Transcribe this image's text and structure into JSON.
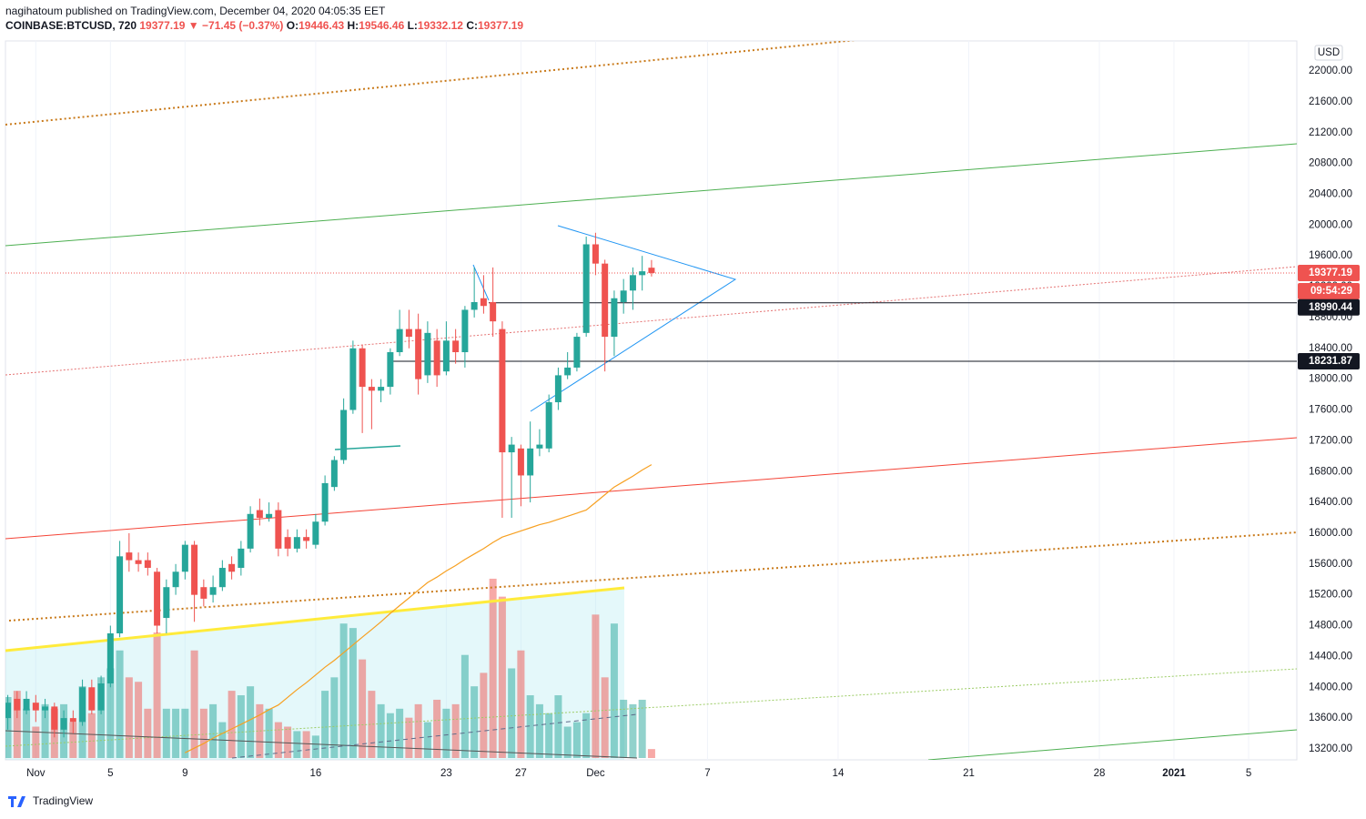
{
  "header": {
    "published": "nagihatoum published on TradingView.com, December 04, 2020 04:05:35 EET",
    "symbol": "COINBASE:BTCUSD, 720",
    "arrow": "▼",
    "change": "−71.45 (−0.37%)",
    "o": "O:",
    "h": "H:",
    "l": "L:",
    "c": "C:"
  },
  "footer": {
    "brand": "TradingView"
  },
  "chart_data": {
    "type": "candlestick",
    "currency": "USD",
    "countdown": "09:54:29",
    "x": [
      "2020-10-30T12:00",
      "2020-10-31T00:00",
      "2020-10-31T12:00",
      "2020-11-01T00:00",
      "2020-11-01T12:00",
      "2020-11-02T00:00",
      "2020-11-02T12:00",
      "2020-11-03T00:00",
      "2020-11-03T12:00",
      "2020-11-04T00:00",
      "2020-11-04T12:00",
      "2020-11-05T00:00",
      "2020-11-05T12:00",
      "2020-11-06T00:00",
      "2020-11-06T12:00",
      "2020-11-07T00:00",
      "2020-11-07T12:00",
      "2020-11-08T00:00",
      "2020-11-08T12:00",
      "2020-11-09T00:00",
      "2020-11-09T12:00",
      "2020-11-10T00:00",
      "2020-11-10T12:00",
      "2020-11-11T00:00",
      "2020-11-11T12:00",
      "2020-11-12T00:00",
      "2020-11-12T12:00",
      "2020-11-13T00:00",
      "2020-11-13T12:00",
      "2020-11-14T00:00",
      "2020-11-14T12:00",
      "2020-11-15T00:00",
      "2020-11-15T12:00",
      "2020-11-16T00:00",
      "2020-11-16T12:00",
      "2020-11-17T00:00",
      "2020-11-17T12:00",
      "2020-11-18T00:00",
      "2020-11-18T12:00",
      "2020-11-19T00:00",
      "2020-11-19T12:00",
      "2020-11-20T00:00",
      "2020-11-20T12:00",
      "2020-11-21T00:00",
      "2020-11-21T12:00",
      "2020-11-22T00:00",
      "2020-11-22T12:00",
      "2020-11-23T00:00",
      "2020-11-23T12:00",
      "2020-11-24T00:00",
      "2020-11-24T12:00",
      "2020-11-25T00:00",
      "2020-11-25T12:00",
      "2020-11-26T00:00",
      "2020-11-26T12:00",
      "2020-11-27T00:00",
      "2020-11-27T12:00",
      "2020-11-28T00:00",
      "2020-11-28T12:00",
      "2020-11-29T00:00",
      "2020-11-29T12:00",
      "2020-11-30T00:00",
      "2020-11-30T12:00",
      "2020-12-01T00:00",
      "2020-12-01T12:00",
      "2020-12-02T00:00",
      "2020-12-02T12:00",
      "2020-12-03T00:00",
      "2020-12-03T12:00",
      "2020-12-04T00:00"
    ],
    "open": [
      13600,
      13850,
      13700,
      13800,
      13700,
      13750,
      13450,
      13600,
      13550,
      14000,
      13700,
      14050,
      14700,
      15750,
      15650,
      15650,
      15500,
      14900,
      15300,
      15500,
      15850,
      15300,
      15200,
      15300,
      15600,
      15550,
      15800,
      16300,
      16200,
      16300,
      15950,
      15800,
      15950,
      15850,
      16150,
      16600,
      16950,
      17600,
      18400,
      17900,
      17850,
      17900,
      18350,
      18650,
      18650,
      18050,
      18500,
      18100,
      18500,
      18350,
      18900,
      19050,
      19000,
      18650,
      17050,
      17100,
      16750,
      17100,
      17100,
      17700,
      18050,
      18150,
      18600,
      19750,
      19500,
      18550,
      19000,
      19150,
      19350,
      19446.43
    ],
    "high": [
      13900,
      13950,
      13950,
      13900,
      13850,
      13800,
      13700,
      13700,
      14100,
      14100,
      14150,
      14800,
      15900,
      16000,
      15750,
      15750,
      15550,
      15400,
      15600,
      15900,
      15900,
      15400,
      15450,
      15650,
      15700,
      15900,
      16350,
      16450,
      16400,
      16400,
      16050,
      16050,
      16050,
      16250,
      16750,
      17000,
      17750,
      18500,
      18450,
      18000,
      18000,
      18400,
      18900,
      18900,
      18850,
      18750,
      18650,
      18750,
      18650,
      18950,
      19450,
      19350,
      19450,
      18750,
      17250,
      17150,
      17450,
      17350,
      17800,
      18150,
      18350,
      18600,
      19850,
      19900,
      19550,
      19150,
      19300,
      19450,
      19600,
      19546.46
    ],
    "low": [
      13450,
      13600,
      13650,
      13550,
      13600,
      13350,
      13350,
      13400,
      13500,
      13650,
      13650,
      14000,
      14650,
      15500,
      15500,
      15450,
      14700,
      14700,
      15200,
      15400,
      14850,
      15050,
      15100,
      15250,
      15400,
      15450,
      15750,
      16100,
      16150,
      15700,
      15700,
      15750,
      15800,
      15800,
      16100,
      16550,
      16900,
      17550,
      17300,
      17350,
      17700,
      17800,
      18300,
      18400,
      17800,
      17950,
      17900,
      18050,
      18200,
      18150,
      18800,
      18850,
      18550,
      16200,
      16200,
      16350,
      16400,
      17000,
      17050,
      17600,
      18000,
      18100,
      18550,
      19350,
      18100,
      18300,
      18850,
      18900,
      19150,
      19332.12
    ],
    "close": [
      13800,
      13700,
      13850,
      13700,
      13750,
      13450,
      13600,
      13550,
      14000,
      13700,
      14050,
      14700,
      15700,
      15650,
      15600,
      15550,
      14800,
      15300,
      15500,
      15850,
      15200,
      15150,
      15300,
      15550,
      15500,
      15800,
      16250,
      16200,
      16250,
      15800,
      15800,
      15950,
      15900,
      16150,
      16650,
      16950,
      17600,
      18400,
      17900,
      17850,
      17900,
      18350,
      18650,
      18550,
      18000,
      18600,
      18050,
      18500,
      18350,
      18900,
      19000,
      18950,
      18750,
      17050,
      17150,
      16750,
      17100,
      17150,
      17700,
      18050,
      18150,
      18550,
      19750,
      19500,
      18550,
      19050,
      19150,
      19350,
      19400,
      19377.19
    ],
    "up_color": "#26a69a",
    "down_color": "#ef5350",
    "volume": {
      "values": [
        68,
        75,
        55,
        35,
        60,
        55,
        60,
        40,
        80,
        50,
        90,
        100,
        120,
        90,
        85,
        55,
        140,
        55,
        55,
        55,
        120,
        55,
        60,
        40,
        75,
        70,
        80,
        60,
        55,
        40,
        35,
        30,
        30,
        25,
        75,
        90,
        150,
        145,
        110,
        75,
        60,
        50,
        55,
        45,
        60,
        40,
        65,
        55,
        60,
        115,
        80,
        95,
        200,
        180,
        100,
        120,
        70,
        60,
        50,
        70,
        35,
        40,
        50,
        160,
        90,
        150,
        65,
        60,
        65,
        10
      ],
      "lim": [
        0,
        203
      ]
    },
    "ma": {
      "color": "#f7a021",
      "values": [
        null,
        null,
        null,
        null,
        null,
        null,
        null,
        null,
        null,
        null,
        null,
        null,
        null,
        null,
        null,
        null,
        null,
        null,
        null,
        13150,
        13210,
        13270,
        13340,
        13400,
        13460,
        13520,
        13580,
        13640,
        13710,
        13770,
        13870,
        13970,
        14060,
        14160,
        14260,
        14350,
        14450,
        14550,
        14650,
        14750,
        14850,
        14960,
        15060,
        15160,
        15260,
        15360,
        15430,
        15510,
        15580,
        15660,
        15730,
        15800,
        15880,
        15950,
        15990,
        16030,
        16070,
        16110,
        16140,
        16180,
        16220,
        16260,
        16300,
        16400,
        16500,
        16600,
        16670,
        16740,
        16820,
        16890
      ]
    },
    "hlines": [
      18990.44,
      18231.87
    ],
    "xlim": [
      "2020-10-30T09:00",
      "2021-01-07T14:00"
    ],
    "xticks": [
      {
        "value": "2020-11-01T00:00",
        "label": "Nov"
      },
      {
        "value": "2020-11-05T00:00",
        "label": "5"
      },
      {
        "value": "2020-11-09T00:00",
        "label": "9"
      },
      {
        "value": "2020-11-16T00:00",
        "label": "16"
      },
      {
        "value": "2020-11-23T00:00",
        "label": "23"
      },
      {
        "value": "2020-11-27T00:00",
        "label": "27"
      },
      {
        "value": "2020-12-01T00:00",
        "label": "Dec"
      },
      {
        "value": "2020-12-07T00:00",
        "label": "7"
      },
      {
        "value": "2020-12-14T00:00",
        "label": "14"
      },
      {
        "value": "2020-12-21T00:00",
        "label": "21"
      },
      {
        "value": "2020-12-28T00:00",
        "label": "28"
      },
      {
        "value": "2021-01-01T00:00",
        "label": "2021"
      },
      {
        "value": "2021-01-05T00:00",
        "label": "5"
      }
    ],
    "ylim": [
      13058,
      22390
    ],
    "yticks": [
      {
        "value": 13200,
        "label": "13200.00"
      },
      {
        "value": 13600,
        "label": "13600.00"
      },
      {
        "value": 14000,
        "label": "14000.00"
      },
      {
        "value": 14400,
        "label": "14400.00"
      },
      {
        "value": 14800,
        "label": "14800.00"
      },
      {
        "value": 15200,
        "label": "15200.00"
      },
      {
        "value": 15600,
        "label": "15600.00"
      },
      {
        "value": 16000,
        "label": "16000.00"
      },
      {
        "value": 16400,
        "label": "16400.00"
      },
      {
        "value": 16800,
        "label": "16800.00"
      },
      {
        "value": 17200,
        "label": "17200.00"
      },
      {
        "value": 17600,
        "label": "17600.00"
      },
      {
        "value": 18000,
        "label": "18000.00"
      },
      {
        "value": 18400,
        "label": "18400.00"
      },
      {
        "value": 18800,
        "label": "18800.00"
      },
      {
        "value": 19200,
        "label": "19200.00"
      },
      {
        "value": 19600,
        "label": "19600.00"
      },
      {
        "value": 20000,
        "label": "20000.00"
      },
      {
        "value": 20400,
        "label": "20400.00"
      },
      {
        "value": 20800,
        "label": "20800.00"
      },
      {
        "value": 21200,
        "label": "21200.00"
      },
      {
        "value": 21600,
        "label": "21600.00"
      },
      {
        "value": 22000,
        "label": "22000.00"
      }
    ],
    "grid": true
  }
}
